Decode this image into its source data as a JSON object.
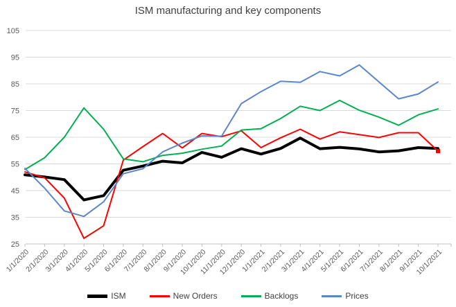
{
  "title": "ISM manufacturing and key components",
  "chart_data": {
    "type": "line",
    "title": "ISM manufacturing and key components",
    "categories": [
      "1/1/2020",
      "2/1/2020",
      "3/1/2020",
      "4/1/2020",
      "5/1/2020",
      "6/1/2020",
      "7/1/2020",
      "8/1/2020",
      "9/1/2020",
      "10/1/2020",
      "11/1/2020",
      "12/1/2020",
      "1/1/2021",
      "2/1/2021",
      "3/1/2021",
      "4/1/2021",
      "5/1/2021",
      "6/1/2021",
      "7/1/2021",
      "8/1/2021",
      "9/1/2021",
      "10/1/2021"
    ],
    "series": [
      {
        "name": "ISM",
        "color": "#000000",
        "stroke_width": 4,
        "values": [
          50.9,
          50.1,
          49.1,
          41.5,
          43.1,
          52.6,
          54.2,
          56.0,
          55.4,
          59.3,
          57.5,
          60.7,
          58.7,
          60.8,
          64.7,
          60.7,
          61.2,
          60.6,
          59.5,
          59.9,
          61.1,
          60.8
        ]
      },
      {
        "name": "New Orders",
        "color": "#FF0000",
        "stroke_width": 2,
        "end_marker": true,
        "values": [
          52.0,
          49.8,
          42.2,
          27.1,
          31.8,
          56.4,
          61.5,
          66.4,
          61.0,
          66.4,
          65.2,
          67.4,
          61.1,
          64.8,
          68.0,
          64.3,
          67.0,
          66.0,
          64.9,
          66.7,
          66.7,
          59.8
        ]
      },
      {
        "name": "Backlogs",
        "color": "#00B050",
        "stroke_width": 2,
        "values": [
          52.9,
          57.3,
          65.0,
          76.0,
          68.0,
          56.9,
          55.8,
          58.2,
          59.0,
          60.5,
          61.7,
          67.7,
          68.2,
          72.0,
          76.6,
          75.0,
          78.8,
          75.1,
          72.5,
          69.5,
          73.4,
          75.6
        ]
      },
      {
        "name": "Prices",
        "color": "#5B86C9",
        "stroke_width": 2,
        "values": [
          53.3,
          45.9,
          37.4,
          35.3,
          40.8,
          51.3,
          53.2,
          59.5,
          62.8,
          65.5,
          65.4,
          77.6,
          82.1,
          86.0,
          85.6,
          89.6,
          88.0,
          92.1,
          85.7,
          79.4,
          81.2,
          85.7
        ]
      }
    ],
    "ylim": [
      25,
      105
    ],
    "y_ticks": [
      25,
      35,
      45,
      55,
      65,
      75,
      85,
      95,
      105
    ],
    "grid": true,
    "legend_position": "bottom",
    "x_label_rotation": -45,
    "gridline_color": "#D9D9D9",
    "axis_line_color": "#BFBFBF",
    "axis_label_color": "#595959",
    "title_color": "#404040"
  }
}
